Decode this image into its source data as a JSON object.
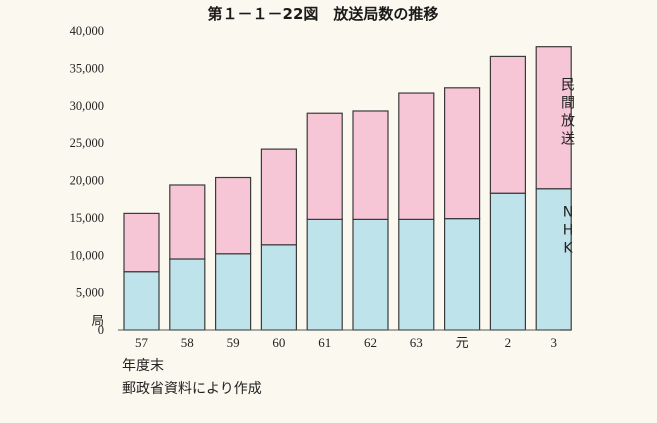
{
  "chart_data": {
    "type": "bar",
    "stacked": true,
    "title": "第１－１－22図　放送局数の推移",
    "ylabel": "局",
    "xlabel": "年度末",
    "ylim": [
      0,
      40000
    ],
    "yticks": [
      "0",
      "5,000",
      "10,000",
      "15,000",
      "20,000",
      "25,000",
      "30,000",
      "35,000",
      "40,000"
    ],
    "categories": [
      "57",
      "58",
      "59",
      "60",
      "61",
      "62",
      "63",
      "元",
      "2",
      "3"
    ],
    "series": [
      {
        "name": "NHK",
        "color": "#bfe3ea",
        "values": [
          7800,
          9500,
          10200,
          11400,
          14800,
          14800,
          14800,
          14900,
          18300,
          18900
        ]
      },
      {
        "name": "民間放送",
        "color": "#f7c6d6",
        "values": [
          7800,
          9900,
          10200,
          12800,
          14200,
          14500,
          16900,
          17500,
          18300,
          19000
        ]
      }
    ],
    "source": "郵政省資料により作成"
  }
}
